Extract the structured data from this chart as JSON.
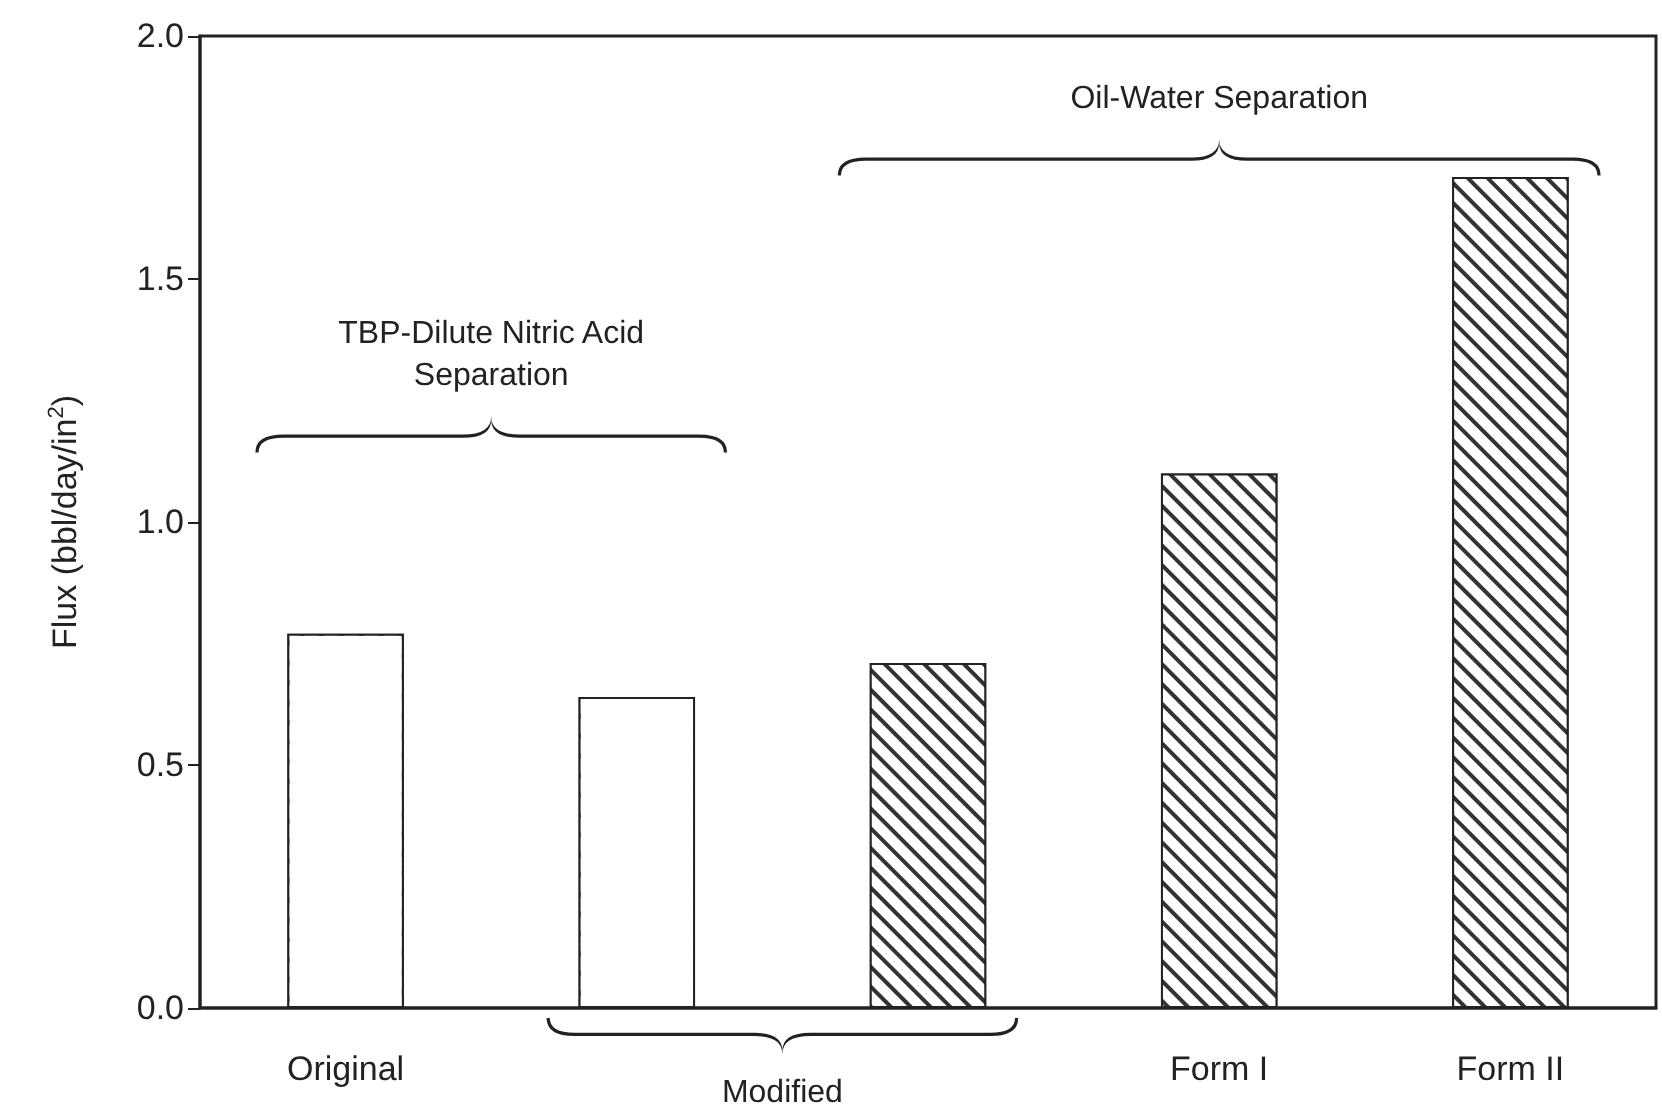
{
  "chart_data": {
    "type": "bar",
    "ylabel": "Flux (bbl/day/in$^{2}$)",
    "categories": [
      "Original",
      null,
      null,
      "Form I",
      "Form II"
    ],
    "series": [
      {
        "color": "#ffffff",
        "values": [
          0.77,
          0.64,
          null,
          null,
          null
        ]
      },
      {
        "color": "#333333",
        "values": [
          null,
          null,
          0.71,
          1.1,
          1.71
        ]
      }
    ],
    "ylim": [
      0,
      2
    ],
    "yticks": [
      {
        "value": 0,
        "label": "0.0"
      },
      {
        "value": 0.5,
        "label": "0.5"
      },
      {
        "value": 1,
        "label": "1.0"
      },
      {
        "value": 1.5,
        "label": "1.5"
      },
      {
        "value": 2,
        "label": "2.0"
      }
    ],
    "grid": false,
    "annotations": [
      "TBP-Dilute Nitric Acid\nSeparation",
      "Oil-Water Separation",
      "Modified"
    ]
  }
}
